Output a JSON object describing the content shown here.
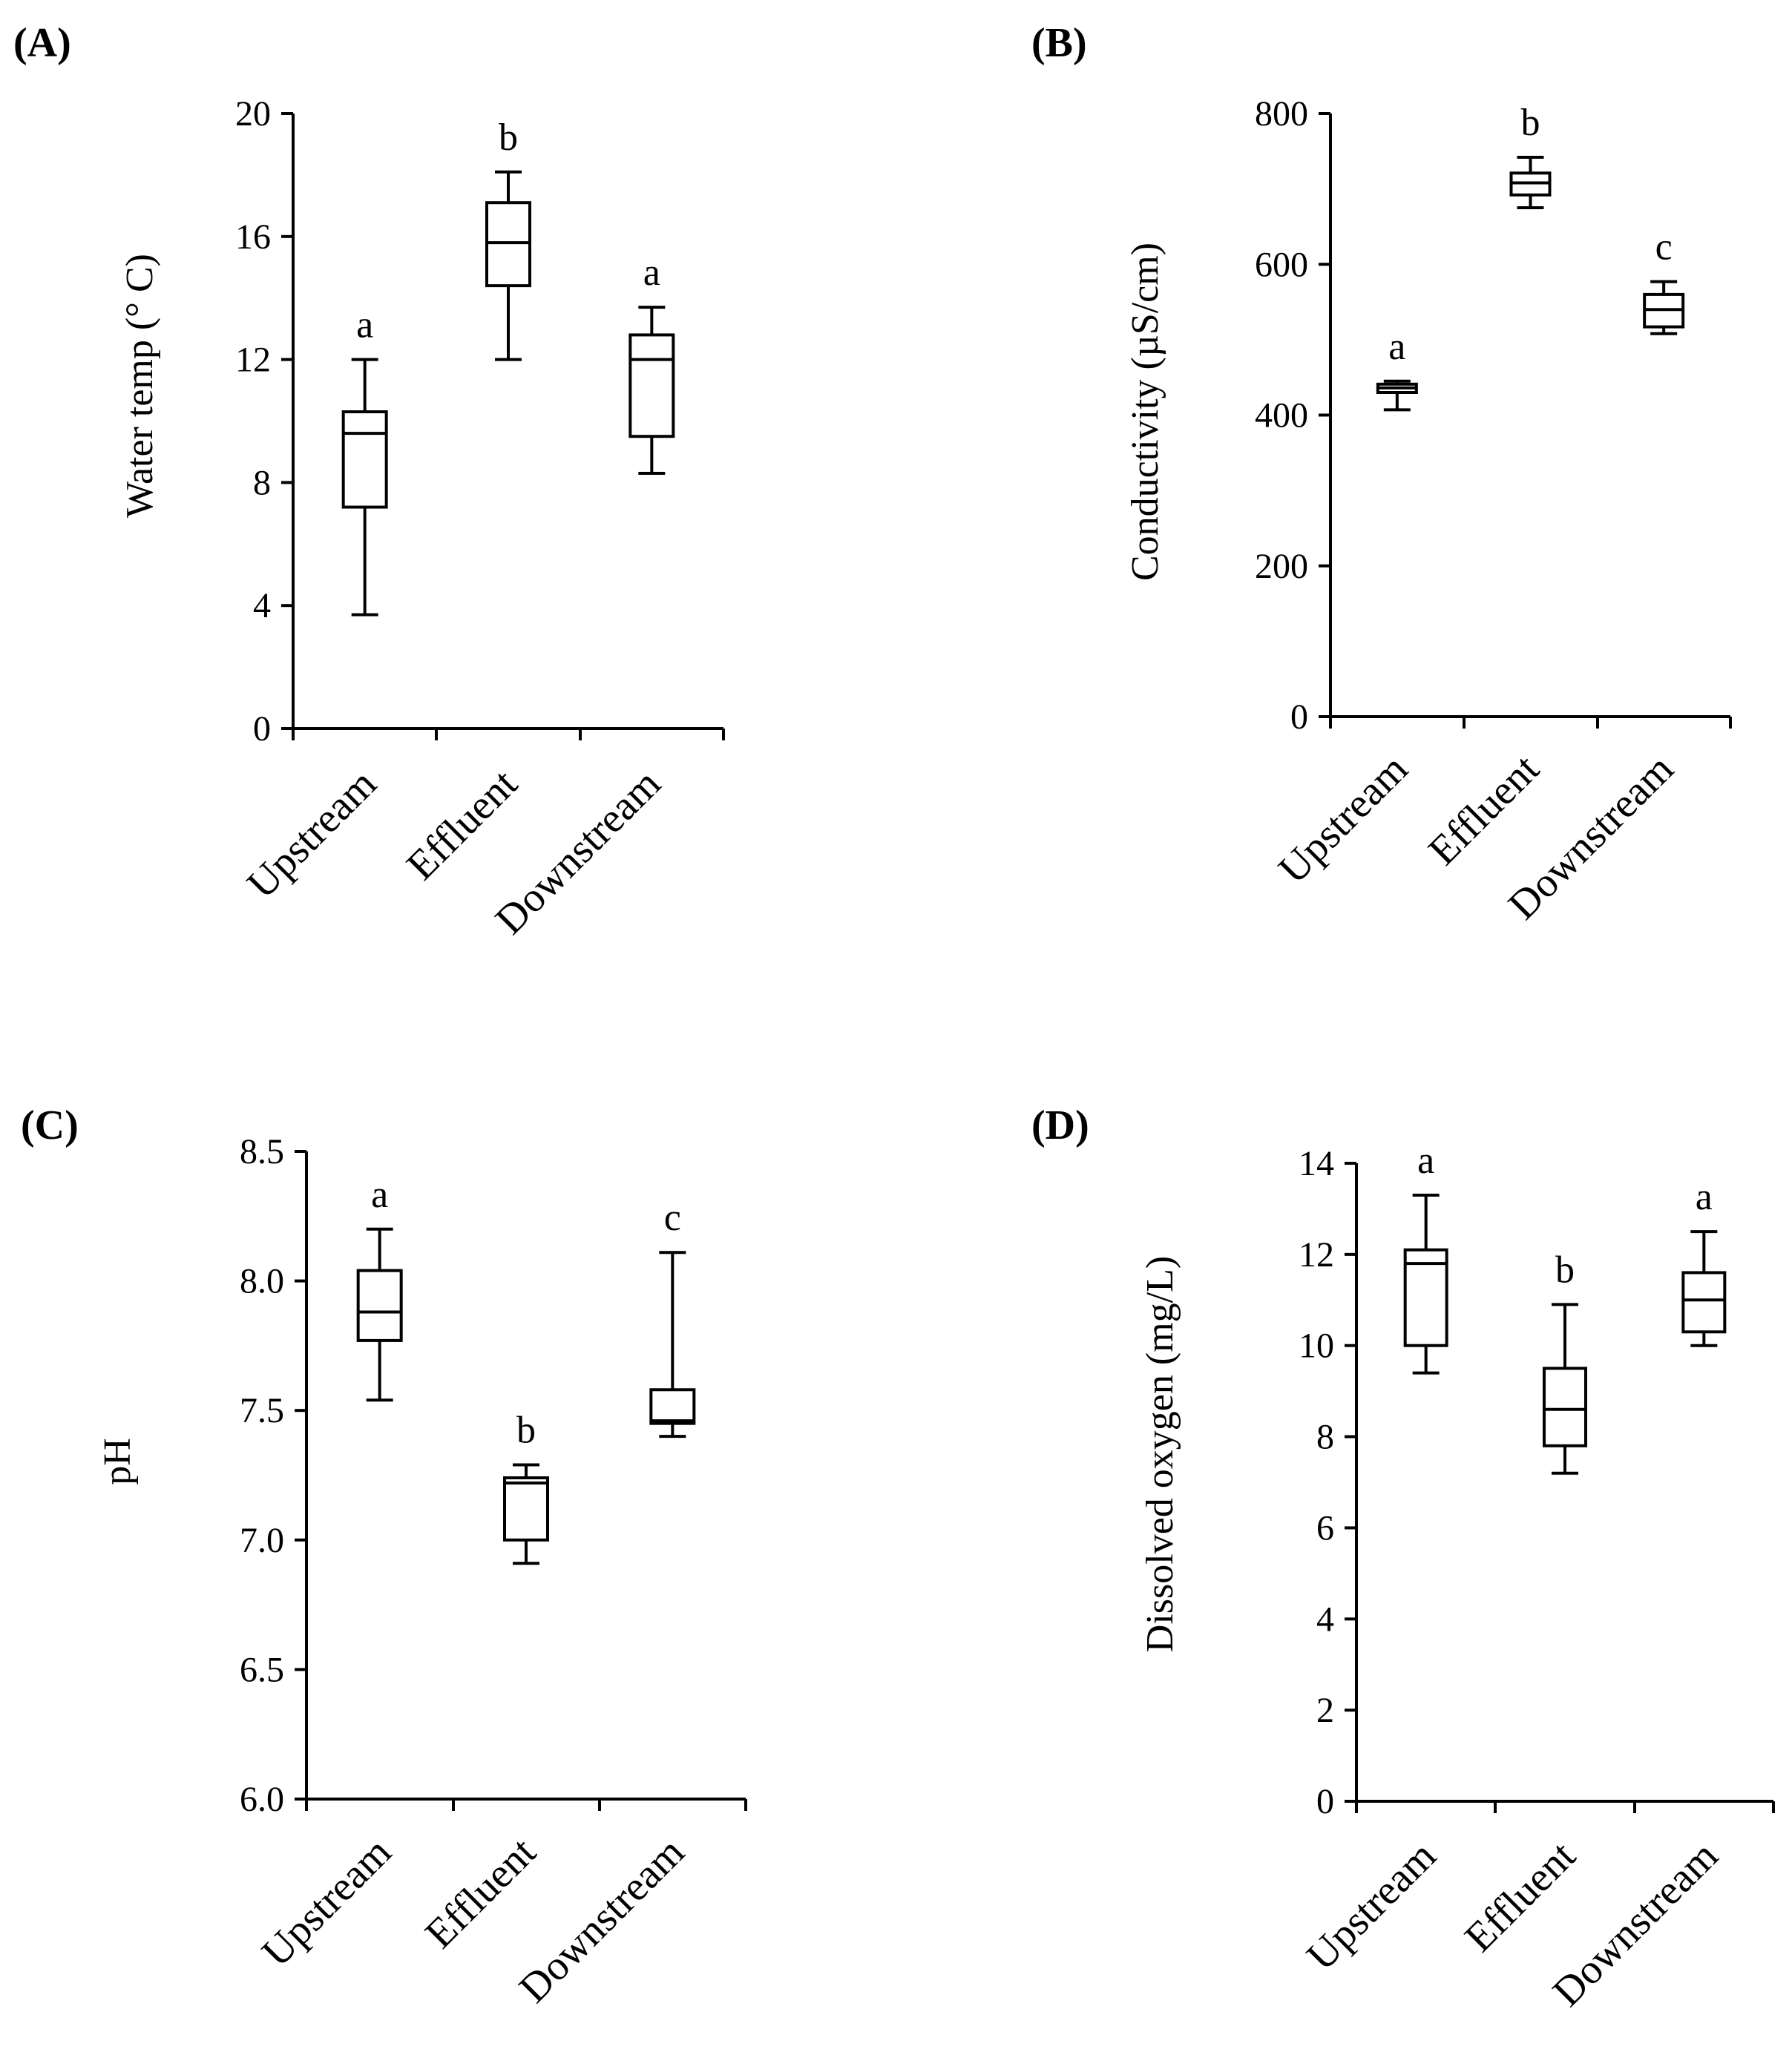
{
  "chart_data": [
    {
      "panel": "(A)",
      "type": "box",
      "ylabel": "Water temp (° C)",
      "ylim": [
        0,
        20
      ],
      "yticks": [
        0,
        4,
        8,
        12,
        16,
        20
      ],
      "tick_labels": [
        "0",
        "4",
        "8",
        "12",
        "16",
        "20"
      ],
      "categories": [
        "Upstream",
        "Effluent",
        "Downstream"
      ],
      "boxes": [
        {
          "min": 3.7,
          "q1": 7.2,
          "median": 9.6,
          "q3": 10.3,
          "max": 12.0,
          "sig": "a"
        },
        {
          "min": 12.0,
          "q1": 14.4,
          "median": 15.8,
          "q3": 17.1,
          "max": 18.1,
          "sig": "b"
        },
        {
          "min": 8.3,
          "q1": 9.5,
          "median": 12.0,
          "q3": 12.8,
          "max": 13.7,
          "sig": "a"
        }
      ]
    },
    {
      "panel": "(B)",
      "type": "box",
      "ylabel": "Conductivity (µS/cm)",
      "ylim": [
        0,
        800
      ],
      "yticks": [
        0,
        200,
        400,
        600,
        800
      ],
      "tick_labels": [
        "0",
        "200",
        "400",
        "600",
        "800"
      ],
      "categories": [
        "Upstream",
        "Effluent",
        "Downstream"
      ],
      "boxes": [
        {
          "min": 407,
          "q1": 430,
          "median": 436,
          "q3": 441,
          "max": 445,
          "sig": "a"
        },
        {
          "min": 675,
          "q1": 692,
          "median": 708,
          "q3": 721,
          "max": 742,
          "sig": "b"
        },
        {
          "min": 508,
          "q1": 517,
          "median": 540,
          "q3": 560,
          "max": 577,
          "sig": "c"
        }
      ]
    },
    {
      "panel": "(C)",
      "type": "box",
      "ylabel": "pH",
      "ylim": [
        6.0,
        8.5
      ],
      "yticks": [
        6.0,
        6.5,
        7.0,
        7.5,
        8.0,
        8.5
      ],
      "tick_labels": [
        "6.0",
        "6.5",
        "7.0",
        "7.5",
        "8.0",
        "8.5"
      ],
      "categories": [
        "Upstream",
        "Effluent",
        "Downstream"
      ],
      "boxes": [
        {
          "min": 7.54,
          "q1": 7.77,
          "median": 7.88,
          "q3": 8.04,
          "max": 8.2,
          "sig": "a"
        },
        {
          "min": 6.91,
          "q1": 7.0,
          "median": 7.22,
          "q3": 7.24,
          "max": 7.29,
          "sig": "b"
        },
        {
          "min": 7.4,
          "q1": 7.45,
          "median": 7.46,
          "q3": 7.58,
          "max": 8.11,
          "sig": "c"
        }
      ]
    },
    {
      "panel": "(D)",
      "type": "box",
      "ylabel": "Dissolved oxygen (mg/L)",
      "ylim": [
        0,
        14
      ],
      "yticks": [
        0,
        2,
        4,
        6,
        8,
        10,
        12,
        14
      ],
      "tick_labels": [
        "0",
        "2",
        "4",
        "6",
        "8",
        "10",
        "12",
        "14"
      ],
      "categories": [
        "Upstream",
        "Effluent",
        "Downstream"
      ],
      "boxes": [
        {
          "min": 9.4,
          "q1": 10.0,
          "median": 11.8,
          "q3": 12.1,
          "max": 13.3,
          "sig": "a"
        },
        {
          "min": 7.2,
          "q1": 7.8,
          "median": 8.6,
          "q3": 9.5,
          "max": 10.9,
          "sig": "b"
        },
        {
          "min": 10.0,
          "q1": 10.3,
          "median": 11.0,
          "q3": 11.6,
          "max": 12.5,
          "sig": "a"
        }
      ]
    }
  ]
}
